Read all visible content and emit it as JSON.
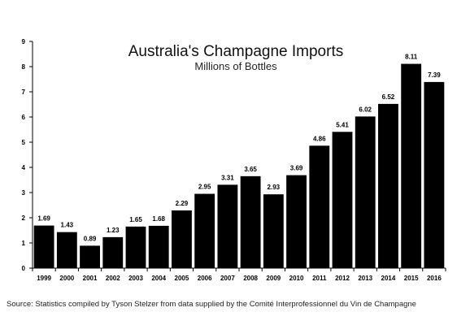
{
  "chart_data": {
    "type": "bar",
    "title": "Australia's Champagne Imports",
    "subtitle": "Millions of Bottles",
    "categories": [
      "1999",
      "2000",
      "2001",
      "2002",
      "2003",
      "2004",
      "2005",
      "2006",
      "2007",
      "2008",
      "2009",
      "2010",
      "2011",
      "2012",
      "2013",
      "2014",
      "2015",
      "2016"
    ],
    "values": [
      1.69,
      1.43,
      0.89,
      1.23,
      1.65,
      1.68,
      2.29,
      2.95,
      3.31,
      3.65,
      2.93,
      3.69,
      4.86,
      5.41,
      6.02,
      6.52,
      8.11,
      7.39
    ],
    "value_labels": [
      "1.69",
      "1.43",
      "0.89",
      "1.23",
      "1.65",
      "1.68",
      "2.29",
      "2.95",
      "3.31",
      "3.65",
      "2.93",
      "3.69",
      "4.86",
      "5.41",
      "6.02",
      "6.52",
      "8.11",
      "7.39"
    ],
    "ylim": [
      0,
      9
    ],
    "yticks": [
      "0",
      "1",
      "2",
      "3",
      "4",
      "5",
      "6",
      "7",
      "8",
      "9"
    ],
    "xlabel": "",
    "ylabel": "",
    "grid": false,
    "bar_color": "#000000"
  },
  "source": "Source: Statistics compiled by Tyson Stelzer from data supplied by the Comité Interprofessionnel du Vin de Champagne"
}
